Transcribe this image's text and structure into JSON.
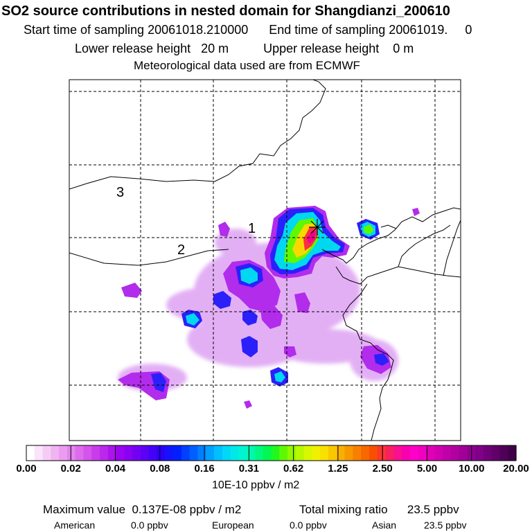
{
  "header": {
    "title": "SO2 source contributions in nested domain for Shangdianzi_200610",
    "sampling": "Start time of sampling 20061018.210000      End time of sampling 20061019.     0",
    "release": "Lower release height   20 m          Upper release height    0 m",
    "met": "Meteorological data used are from ECMWF"
  },
  "map": {
    "region_labels": [
      "3",
      "1",
      "2"
    ],
    "station_marker": "star-marker"
  },
  "colorbar": {
    "tick_labels": [
      "0.00",
      "0.02",
      "0.04",
      "0.08",
      "0.16",
      "0.31",
      "0.62",
      "1.25",
      "2.50",
      "5.00",
      "10.00",
      "20.00"
    ],
    "colors": [
      "#ffffff",
      "#fbe4fb",
      "#f6ccf6",
      "#f0b4f1",
      "#eb9cf0",
      "#e484ee",
      "#dc6cec",
      "#d454ec",
      "#c83ceb",
      "#bb28eb",
      "#ab14ec",
      "#9a04ee",
      "#8a00f2",
      "#7400f4",
      "#5c00f6",
      "#4400f8",
      "#2c00fa",
      "#1414fc",
      "#0020ff",
      "#0040ff",
      "#0060ff",
      "#0080ff",
      "#00a0ff",
      "#00c0ff",
      "#00d8f8",
      "#00e8e8",
      "#00f4d0",
      "#00f8b0",
      "#00f880",
      "#00f850",
      "#20f820",
      "#60f800",
      "#90f800",
      "#b8f800",
      "#d8f800",
      "#f0f000",
      "#f8e000",
      "#f8c800",
      "#f8b000",
      "#f89800",
      "#f88000",
      "#f86800",
      "#f85000",
      "#f83830",
      "#f82060",
      "#f81090",
      "#f800b0",
      "#ff00c8",
      "#f000c0",
      "#e000b8",
      "#d000b0",
      "#c000a8",
      "#b000a0",
      "#a00098",
      "#900090",
      "#800088",
      "#700078",
      "#600068",
      "#500058",
      "#400048"
    ],
    "units": "10E-10 ppbv / m2"
  },
  "footer": {
    "max_value": "Maximum value  0.137E-08 ppbv / m2",
    "total": "Total mixing ratio      23.5 ppbv",
    "american_label": "American",
    "american_value": "0.0 ppbv",
    "european_label": "European",
    "european_value": "0.0 ppbv",
    "asian_label": "Asian",
    "asian_value": "23.5 ppbv"
  }
}
